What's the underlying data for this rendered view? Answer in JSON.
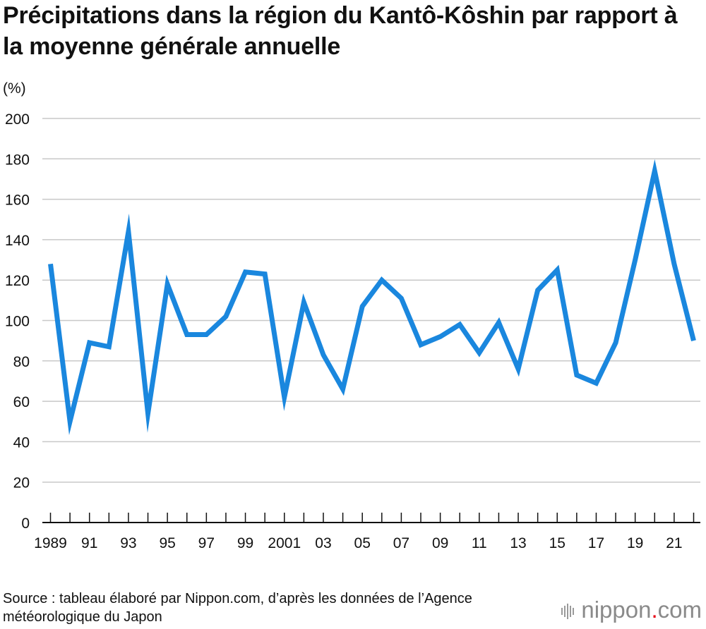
{
  "header": {
    "title": "Précipitations dans la région du Kantô-Kôshin par rapport à la moyenne générale annuelle",
    "unit_label": "(%)"
  },
  "footer": {
    "source": "Source : tableau élaboré par Nippon.com, d’après les données de l’Agence météorologique du Japon",
    "logo_text": "nippon",
    "logo_dot": ".",
    "logo_suffix": "com"
  },
  "colors": {
    "line": "#1a87de",
    "grid": "#c8c8c8",
    "axis": "#111111",
    "logo_dot": "#e60012"
  },
  "chart_data": {
    "type": "line",
    "title": "Précipitations dans la région du Kantô-Kôshin par rapport à la moyenne générale annuelle",
    "ylabel": "(%)",
    "xlabel": "",
    "ylim": [
      0,
      200
    ],
    "yticks": [
      0,
      20,
      40,
      60,
      80,
      100,
      120,
      140,
      160,
      180,
      200
    ],
    "grid": true,
    "xlim": [
      1989,
      2022
    ],
    "x_tick_labels": [
      {
        "year": 1989,
        "label": "1989"
      },
      {
        "year": 1991,
        "label": "91"
      },
      {
        "year": 1993,
        "label": "93"
      },
      {
        "year": 1995,
        "label": "95"
      },
      {
        "year": 1997,
        "label": "97"
      },
      {
        "year": 1999,
        "label": "99"
      },
      {
        "year": 2001,
        "label": "2001"
      },
      {
        "year": 2003,
        "label": "03"
      },
      {
        "year": 2005,
        "label": "05"
      },
      {
        "year": 2007,
        "label": "07"
      },
      {
        "year": 2009,
        "label": "09"
      },
      {
        "year": 2011,
        "label": "11"
      },
      {
        "year": 2013,
        "label": "13"
      },
      {
        "year": 2015,
        "label": "15"
      },
      {
        "year": 2017,
        "label": "17"
      },
      {
        "year": 2019,
        "label": "19"
      },
      {
        "year": 2021,
        "label": "21"
      }
    ],
    "x": [
      1989,
      1990,
      1991,
      1992,
      1993,
      1994,
      1995,
      1996,
      1997,
      1998,
      1999,
      2000,
      2001,
      2002,
      2003,
      2004,
      2005,
      2006,
      2007,
      2008,
      2009,
      2010,
      2011,
      2012,
      2013,
      2014,
      2015,
      2016,
      2017,
      2018,
      2019,
      2020,
      2021,
      2022
    ],
    "series": [
      {
        "values": [
          128,
          50,
          89,
          87,
          144,
          54,
          118,
          93,
          93,
          102,
          124,
          123,
          62,
          109,
          83,
          66,
          107,
          120,
          111,
          88,
          92,
          98,
          84,
          99,
          76,
          115,
          125,
          73,
          69,
          89,
          130,
          174,
          128,
          90
        ]
      }
    ]
  }
}
